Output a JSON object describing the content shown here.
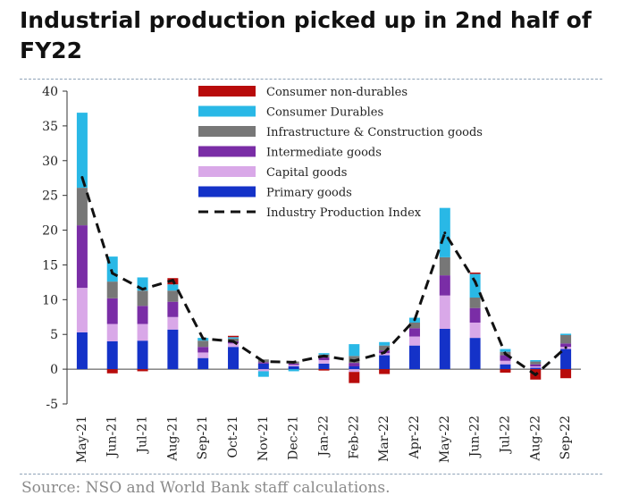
{
  "header": {
    "title": "Industrial production picked up in 2nd half of FY22"
  },
  "footer": {
    "source": "Source: NSO and World Bank staff calculations."
  },
  "chart_data": {
    "type": "bar",
    "stacked": true,
    "title": "Industrial production picked up in 2nd half of FY22",
    "xlabel": "",
    "ylabel": "",
    "ylim": [
      -5,
      40
    ],
    "yticks": [
      -5,
      0,
      5,
      10,
      15,
      20,
      25,
      30,
      35,
      40
    ],
    "grid": false,
    "legend_position": "top-center",
    "categories": [
      "May-21",
      "Jun-21",
      "Jul-21",
      "Aug-21",
      "Sep-21",
      "Oct-21",
      "Nov-21",
      "Dec-21",
      "Jan-22",
      "Feb-22",
      "Mar-22",
      "Apr-22",
      "May-22",
      "Jun-22",
      "Jul-22",
      "Aug-22",
      "Sep-22"
    ],
    "series": [
      {
        "name": "Primary goods",
        "color": "#1432c8",
        "values": [
          5.3,
          4.0,
          4.1,
          5.7,
          1.6,
          3.2,
          0.8,
          0.4,
          0.8,
          0.4,
          2.0,
          3.4,
          5.8,
          4.5,
          0.7,
          0.2,
          2.9
        ]
      },
      {
        "name": "Capital goods",
        "color": "#d9a8e8",
        "values": [
          6.4,
          2.5,
          2.4,
          1.8,
          0.8,
          0.5,
          -0.3,
          0.2,
          0.5,
          -0.4,
          0.3,
          1.3,
          4.8,
          2.2,
          0.5,
          0.2,
          0.3
        ]
      },
      {
        "name": "Intermediate goods",
        "color": "#7a2da6",
        "values": [
          9.0,
          3.7,
          2.6,
          2.2,
          0.8,
          0.3,
          0.2,
          0.2,
          0.4,
          0.5,
          0.4,
          1.2,
          2.9,
          2.1,
          0.8,
          0.3,
          0.5
        ]
      },
      {
        "name": "Infrastructure & Construction goods",
        "color": "#777777",
        "values": [
          5.4,
          2.4,
          2.2,
          1.6,
          0.9,
          0.4,
          0.4,
          0.3,
          0.4,
          1.0,
          0.7,
          0.8,
          2.6,
          1.5,
          0.5,
          0.4,
          1.2
        ]
      },
      {
        "name": "Consumer Durables",
        "color": "#29b8e6",
        "values": [
          10.8,
          3.6,
          1.9,
          0.9,
          0.4,
          0.2,
          -0.8,
          -0.3,
          0.2,
          1.7,
          0.5,
          0.7,
          7.1,
          3.4,
          0.4,
          0.2,
          0.2
        ]
      },
      {
        "name": "Consumer non-durables",
        "color": "#b80b0b",
        "values": [
          0.0,
          -0.6,
          -0.3,
          0.9,
          0.0,
          0.2,
          0.0,
          0.0,
          -0.2,
          -1.6,
          -0.7,
          0.0,
          0.0,
          0.2,
          -0.5,
          -1.5,
          -1.3
        ]
      }
    ],
    "line": {
      "name": "Industry Production Index",
      "style": "dashed",
      "color": "#111111",
      "values": [
        27.6,
        13.8,
        11.5,
        12.8,
        4.4,
        4.0,
        1.1,
        1.0,
        1.9,
        1.2,
        2.4,
        7.1,
        19.6,
        12.6,
        2.2,
        -0.8,
        3.1
      ]
    },
    "legend_order": [
      "Consumer non-durables",
      "Consumer Durables",
      "Infrastructure & Construction goods",
      "Intermediate goods",
      "Capital goods",
      "Primary goods",
      "Industry Production Index"
    ]
  }
}
